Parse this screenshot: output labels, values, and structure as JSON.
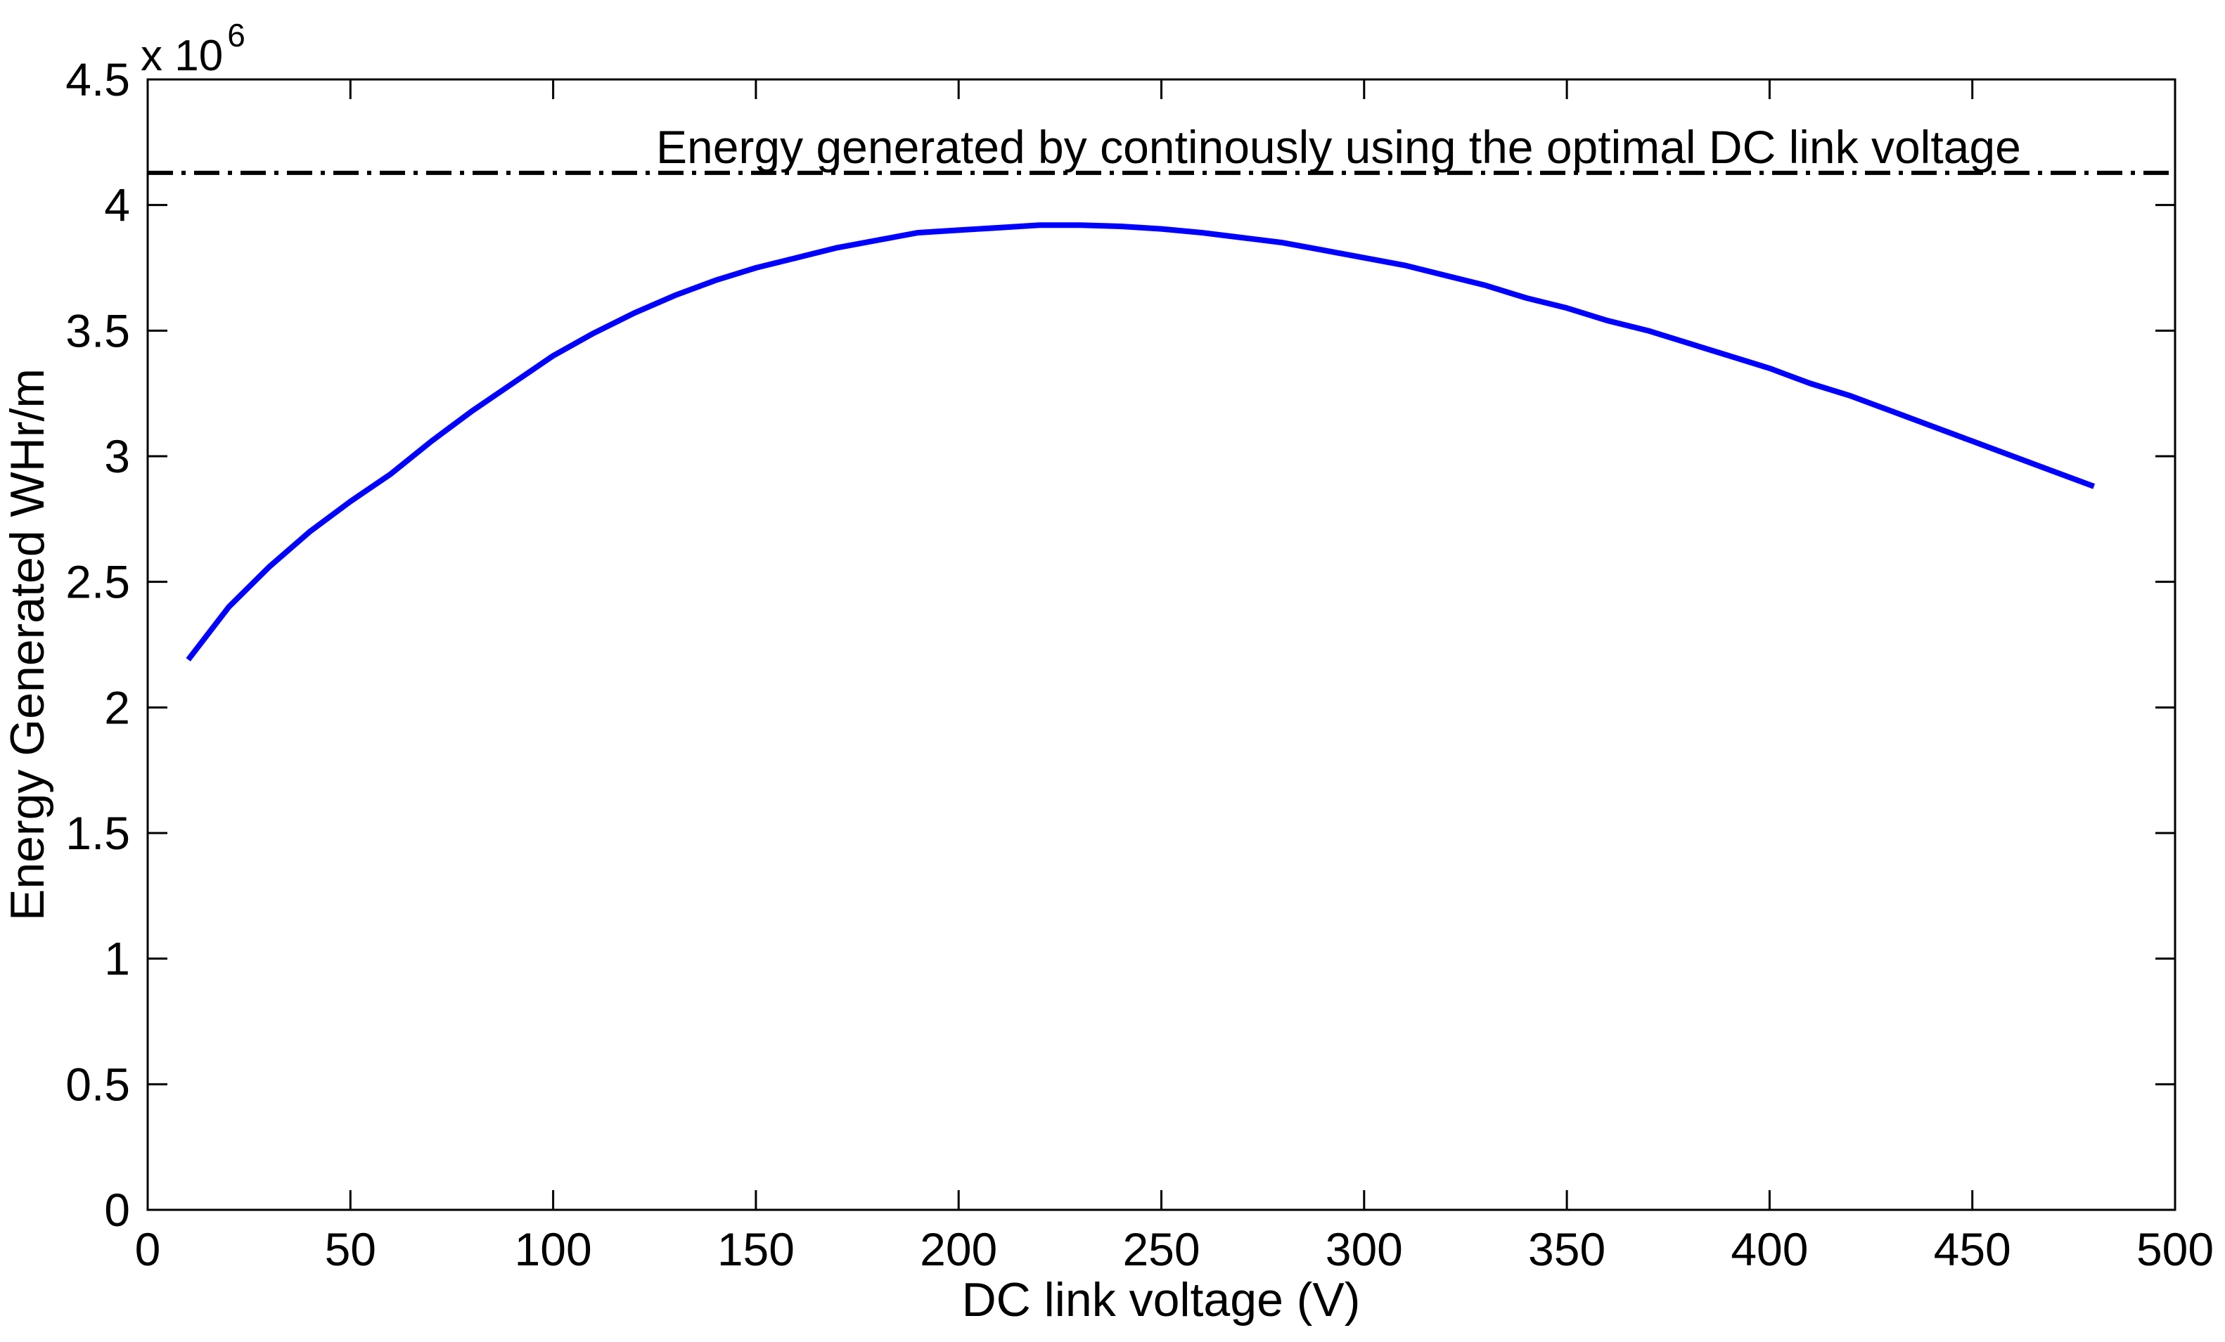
{
  "figure": {
    "background": "#FFFFFF"
  },
  "chart_data": {
    "type": "line",
    "title": "",
    "xlabel": "DC link voltage (V)",
    "ylabel": "Energy Generated WHr/m",
    "y_axis_multiplier": {
      "text": "x 10",
      "exponent": "6"
    },
    "xlim": [
      0,
      500
    ],
    "ylim": [
      0,
      4500000
    ],
    "xticks": [
      0,
      50,
      100,
      150,
      200,
      250,
      300,
      350,
      400,
      450,
      500
    ],
    "xticklabels": [
      "0",
      "50",
      "100",
      "150",
      "200",
      "250",
      "300",
      "350",
      "400",
      "450",
      "500"
    ],
    "yticks": [
      0,
      500000,
      1000000,
      1500000,
      2000000,
      2500000,
      3000000,
      3500000,
      4000000,
      4500000
    ],
    "yticklabels": [
      "0",
      "0.5",
      "1",
      "1.5",
      "2",
      "2.5",
      "3",
      "3.5",
      "4",
      "4.5"
    ],
    "grid": false,
    "legend": null,
    "series": [
      {
        "name": "energy-vs-dc-link-voltage",
        "color": "#0000FF",
        "line_width": 8,
        "x": [
          10,
          20,
          30,
          40,
          50,
          60,
          70,
          80,
          90,
          100,
          110,
          120,
          130,
          140,
          150,
          160,
          170,
          180,
          190,
          200,
          210,
          220,
          230,
          240,
          250,
          260,
          270,
          280,
          290,
          300,
          310,
          320,
          330,
          340,
          350,
          360,
          370,
          380,
          390,
          400,
          410,
          420,
          430,
          440,
          450,
          460,
          470,
          480
        ],
        "y": [
          2190000,
          2400000,
          2560000,
          2700000,
          2820000,
          2930000,
          3060000,
          3180000,
          3290000,
          3400000,
          3490000,
          3570000,
          3640000,
          3700000,
          3750000,
          3790000,
          3830000,
          3860000,
          3890000,
          3900000,
          3910000,
          3920000,
          3920000,
          3915000,
          3905000,
          3890000,
          3870000,
          3850000,
          3820000,
          3790000,
          3760000,
          3720000,
          3680000,
          3630000,
          3590000,
          3540000,
          3500000,
          3450000,
          3400000,
          3350000,
          3290000,
          3240000,
          3180000,
          3120000,
          3060000,
          3000000,
          2940000,
          2880000
        ]
      }
    ],
    "reference_line": {
      "label": "Energy generated by continously using the optimal DC link voltage",
      "value": 4128000,
      "color": "#000000",
      "style": "dash-dot",
      "line_width": 6
    }
  }
}
